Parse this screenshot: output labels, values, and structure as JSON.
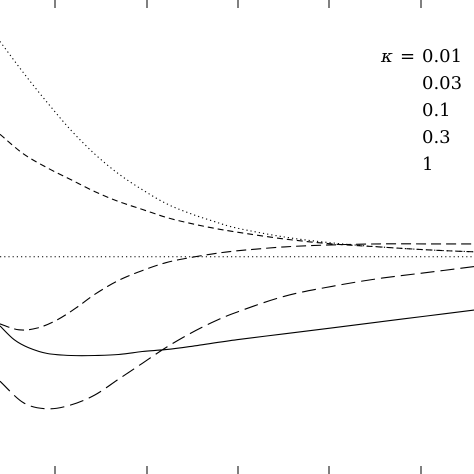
{
  "chart_data": {
    "type": "line",
    "legend": {
      "title": "κ",
      "placement": "top-right",
      "entries": [
        "0.01",
        "0.03",
        "0.1",
        "0.3",
        "1"
      ]
    },
    "reference_line": {
      "y": 0,
      "style": "dotted"
    },
    "xlim": [
      0,
      1
    ],
    "ylim": [
      -1.1,
      1.3
    ],
    "grid": false,
    "series": [
      {
        "name": "0.01",
        "dash": "1.2,3",
        "x": [
          0.0,
          0.05,
          0.1,
          0.15,
          0.2,
          0.25,
          0.3,
          0.35,
          0.4,
          0.45,
          0.5,
          0.6,
          0.7,
          0.8,
          0.9,
          1.0
        ],
        "y": [
          1.09,
          0.93,
          0.78,
          0.64,
          0.52,
          0.42,
          0.34,
          0.27,
          0.22,
          0.18,
          0.145,
          0.1,
          0.07,
          0.05,
          0.035,
          0.025
        ]
      },
      {
        "name": "0.03",
        "dash": "6,4",
        "x": [
          0.0,
          0.05,
          0.1,
          0.15,
          0.2,
          0.25,
          0.3,
          0.35,
          0.4,
          0.45,
          0.5,
          0.6,
          0.7,
          0.8,
          0.9,
          1.0
        ],
        "y": [
          0.62,
          0.52,
          0.45,
          0.39,
          0.33,
          0.28,
          0.24,
          0.2,
          0.17,
          0.145,
          0.125,
          0.09,
          0.065,
          0.05,
          0.035,
          0.025
        ]
      },
      {
        "name": "0.1",
        "dash": "10,5",
        "x": [
          0.0,
          0.04,
          0.08,
          0.12,
          0.16,
          0.2,
          0.25,
          0.3,
          0.35,
          0.4,
          0.45,
          0.5,
          0.6,
          0.7,
          0.8,
          0.9,
          1.0
        ],
        "y": [
          -0.34,
          -0.37,
          -0.36,
          -0.32,
          -0.26,
          -0.19,
          -0.12,
          -0.07,
          -0.03,
          -0.005,
          0.015,
          0.03,
          0.05,
          0.06,
          0.065,
          0.065,
          0.065
        ]
      },
      {
        "name": "0.3",
        "dash": "14,6",
        "x": [
          0.0,
          0.05,
          0.1,
          0.15,
          0.2,
          0.25,
          0.3,
          0.35,
          0.4,
          0.45,
          0.5,
          0.6,
          0.7,
          0.8,
          0.9,
          1.0
        ],
        "y": [
          -0.63,
          -0.74,
          -0.77,
          -0.75,
          -0.7,
          -0.62,
          -0.54,
          -0.46,
          -0.39,
          -0.33,
          -0.28,
          -0.2,
          -0.15,
          -0.11,
          -0.08,
          -0.05
        ]
      },
      {
        "name": "1",
        "dash": "",
        "x": [
          0.0,
          0.03,
          0.06,
          0.1,
          0.15,
          0.2,
          0.25,
          0.3,
          0.35,
          0.4,
          0.5,
          0.6,
          0.7,
          0.8,
          0.9,
          1.0
        ],
        "y": [
          -0.35,
          -0.42,
          -0.46,
          -0.49,
          -0.5,
          -0.5,
          -0.495,
          -0.48,
          -0.47,
          -0.455,
          -0.42,
          -0.39,
          -0.36,
          -0.33,
          -0.3,
          -0.27
        ]
      }
    ]
  }
}
